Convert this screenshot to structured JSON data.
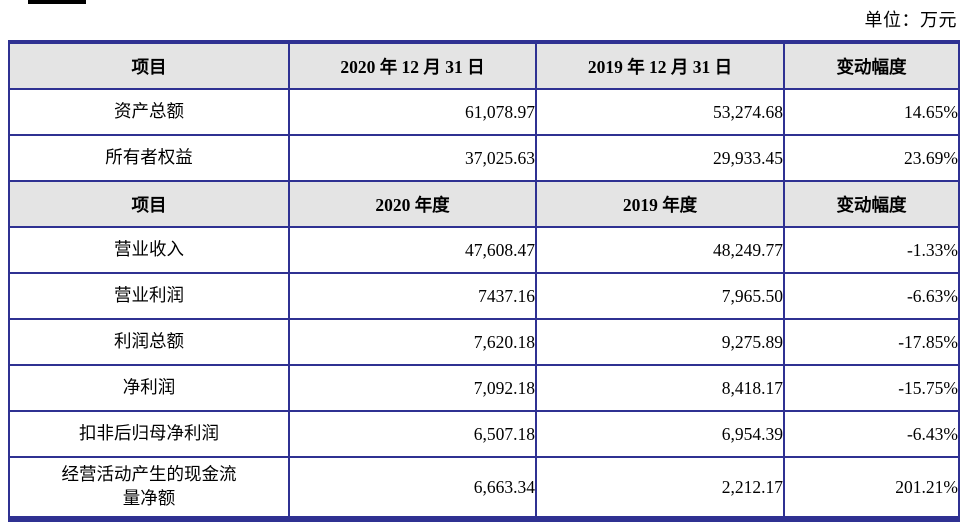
{
  "page": {
    "unit_label": "单位：万元"
  },
  "colors": {
    "table_border": "#2F3192",
    "header_background": "#E4E4E4",
    "text": "#000000"
  },
  "table": {
    "sections": [
      {
        "header": {
          "item": "项目",
          "col2020": "2020 年 12 月 31 日",
          "col2019": "2019 年 12 月 31 日",
          "change": "变动幅度"
        },
        "rows": [
          {
            "item": "资产总额",
            "v2020": "61,078.97",
            "v2019": "53,274.68",
            "change": "14.65%"
          },
          {
            "item": "所有者权益",
            "v2020": "37,025.63",
            "v2019": "29,933.45",
            "change": "23.69%"
          }
        ]
      },
      {
        "header": {
          "item": "项目",
          "col2020": "2020 年度",
          "col2019": "2019 年度",
          "change": "变动幅度"
        },
        "rows": [
          {
            "item": "营业收入",
            "v2020": "47,608.47",
            "v2019": "48,249.77",
            "change": "-1.33%"
          },
          {
            "item": "营业利润",
            "v2020": "7437.16",
            "v2019": "7,965.50",
            "change": "-6.63%"
          },
          {
            "item": "利润总额",
            "v2020": "7,620.18",
            "v2019": "9,275.89",
            "change": "-17.85%"
          },
          {
            "item": "净利润",
            "v2020": "7,092.18",
            "v2019": "8,418.17",
            "change": "-15.75%"
          },
          {
            "item": "扣非后归母净利润",
            "v2020": "6,507.18",
            "v2019": "6,954.39",
            "change": "-6.43%"
          },
          {
            "item": "经营活动产生的现金流\n量净额",
            "v2020": "6,663.34",
            "v2019": "2,212.17",
            "change": "201.21%"
          }
        ]
      }
    ]
  }
}
